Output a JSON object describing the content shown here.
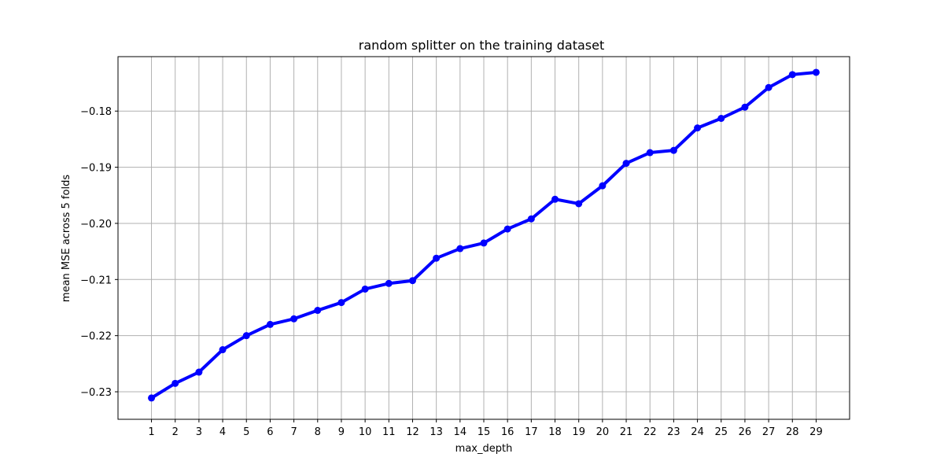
{
  "chart_data": {
    "type": "line",
    "title": "random splitter on the training dataset",
    "xlabel": "max_depth",
    "ylabel": "mean MSE across 5 folds",
    "x": [
      1,
      2,
      3,
      4,
      5,
      6,
      7,
      8,
      9,
      10,
      11,
      12,
      13,
      14,
      15,
      16,
      17,
      18,
      19,
      20,
      21,
      22,
      23,
      24,
      25,
      26,
      27,
      28,
      29
    ],
    "x_tick_labels": [
      "1",
      "2",
      "3",
      "4",
      "5",
      "6",
      "7",
      "8",
      "9",
      "10",
      "11",
      "12",
      "13",
      "14",
      "15",
      "16",
      "17",
      "18",
      "19",
      "20",
      "21",
      "22",
      "23",
      "24",
      "25",
      "26",
      "27",
      "28",
      "29"
    ],
    "series": [
      {
        "values": [
          -0.2311,
          -0.2285,
          -0.2265,
          -0.2225,
          -0.22,
          -0.218,
          -0.217,
          -0.2155,
          -0.2141,
          -0.2117,
          -0.2107,
          -0.2102,
          -0.2062,
          -0.2045,
          -0.2035,
          -0.201,
          -0.1992,
          -0.1957,
          -0.1965,
          -0.1933,
          -0.1893,
          -0.1874,
          -0.187,
          -0.183,
          -0.1813,
          -0.1793,
          -0.1758,
          -0.1735,
          -0.1731
        ],
        "color": "#0000ff"
      }
    ],
    "y_ticks": [
      -0.23,
      -0.22,
      -0.21,
      -0.2,
      -0.19,
      -0.18
    ],
    "y_tick_labels": [
      "−0.23",
      "−0.22",
      "−0.21",
      "−0.20",
      "−0.19",
      "−0.18"
    ],
    "xlim": [
      -0.41,
      30.41
    ],
    "ylim": [
      -0.2349,
      -0.1703
    ],
    "grid": true
  }
}
